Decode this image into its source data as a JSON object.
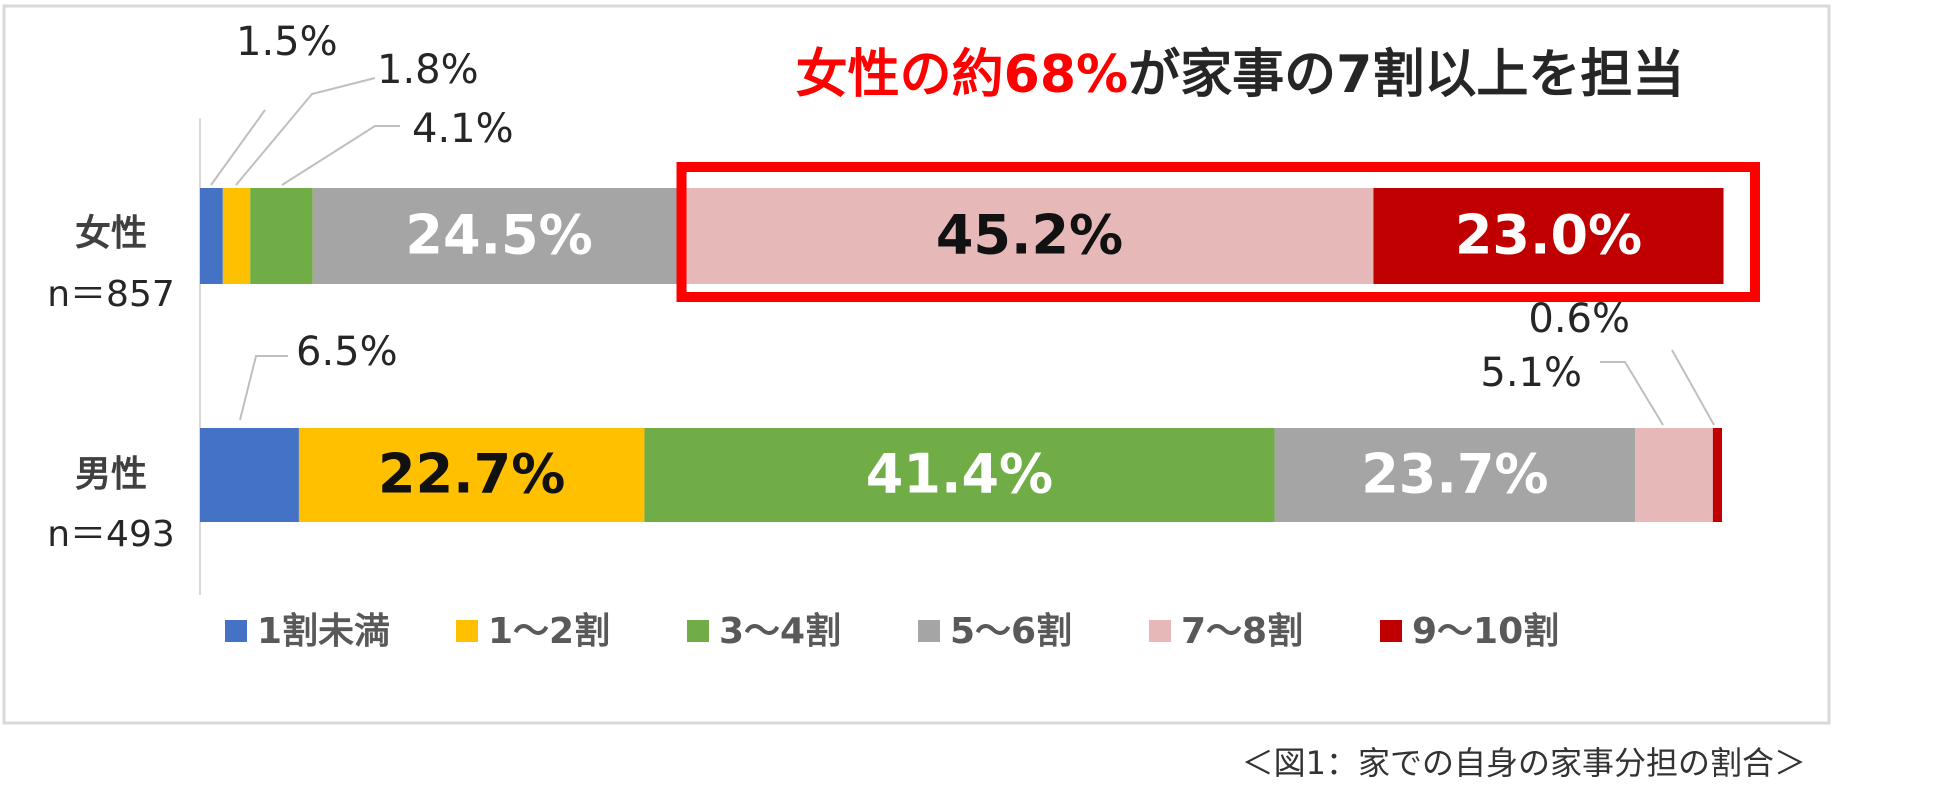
{
  "chart_data": {
    "type": "stacked_bar_horizontal",
    "title_highlight": "女性の約68%",
    "title_rest": "が家事の7割以上を担当",
    "caption": "＜図1：家での自身の家事分担の割合＞",
    "categories": [
      "女性",
      "男性"
    ],
    "sample_sizes": [
      "n＝857",
      "n＝493"
    ],
    "xlim": [
      0,
      100
    ],
    "series": [
      {
        "name": "1割未満",
        "color": "#4472c4",
        "values": [
          1.5,
          6.5
        ],
        "value_labels": [
          "1.5%",
          "6.5%"
        ]
      },
      {
        "name": "1～2割",
        "color": "#ffc000",
        "values": [
          1.8,
          22.7
        ],
        "value_labels": [
          "1.8%",
          "22.7%"
        ]
      },
      {
        "name": "3～4割",
        "color": "#70ad47",
        "values": [
          4.1,
          41.4
        ],
        "value_labels": [
          "4.1%",
          "41.4%"
        ]
      },
      {
        "name": "5～6割",
        "color": "#a5a5a5",
        "values": [
          24.5,
          23.7
        ],
        "value_labels": [
          "24.5%",
          "23.7%"
        ]
      },
      {
        "name": "7～8割",
        "color": "#e6b9b8",
        "values": [
          45.2,
          5.1
        ],
        "value_labels": [
          "45.2%",
          "5.1%"
        ]
      },
      {
        "name": "9～10割",
        "color": "#c00000",
        "values": [
          23.0,
          0.6
        ],
        "value_labels": [
          "23.0%",
          "0.6%"
        ]
      }
    ]
  }
}
